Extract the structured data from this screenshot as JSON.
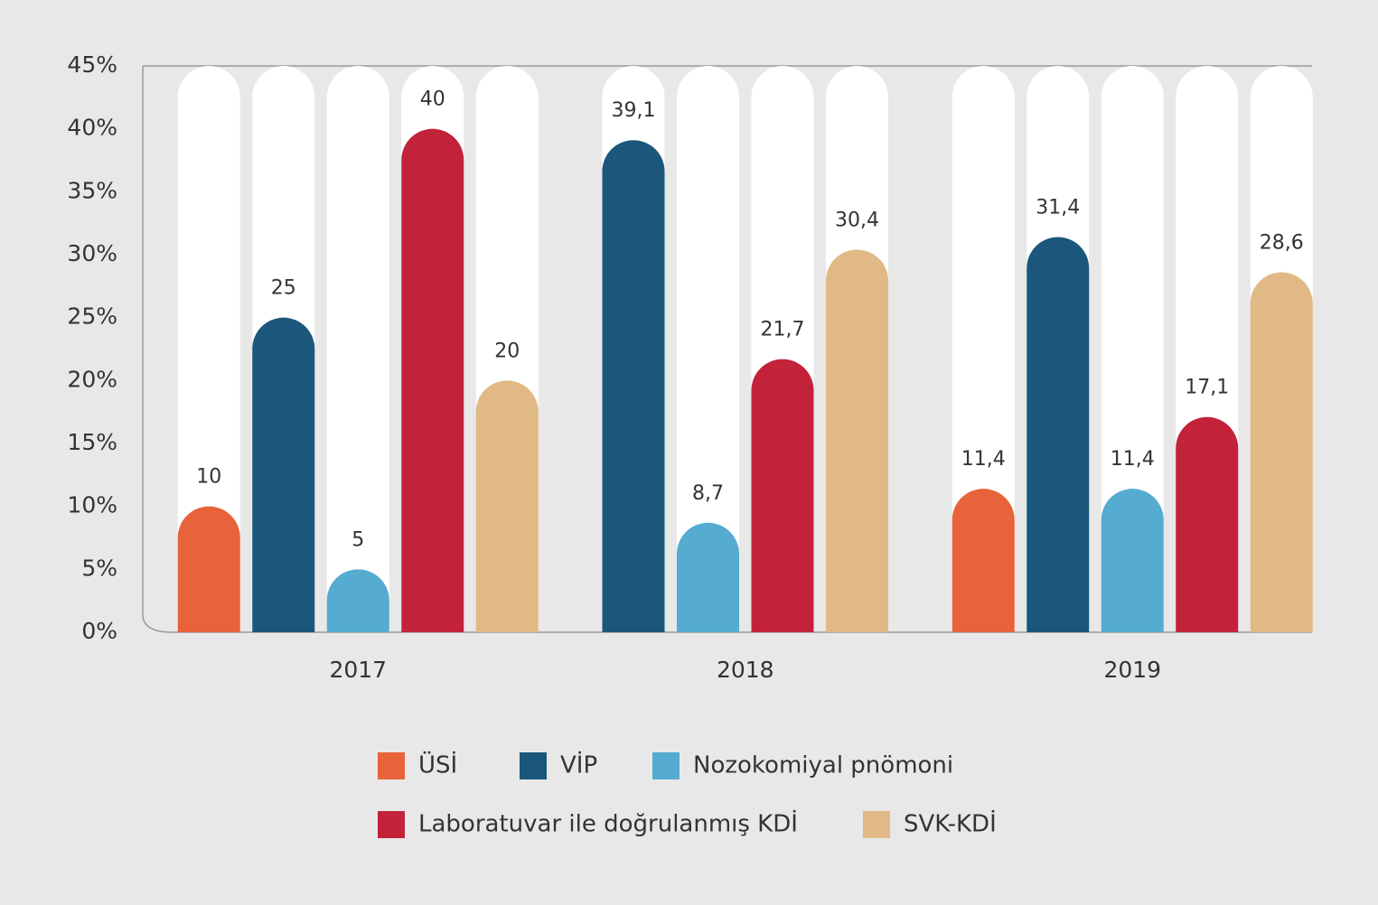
{
  "chart_data": {
    "type": "bar",
    "categories": [
      "2017",
      "2018",
      "2019"
    ],
    "series": [
      {
        "name": "ÜSİ",
        "color": "#e8633a",
        "values": [
          10,
          null,
          11.4
        ],
        "value_labels": [
          "10",
          null,
          "11,4"
        ]
      },
      {
        "name": "VİP",
        "color": "#1b577b",
        "values": [
          25,
          39.1,
          31.4
        ],
        "value_labels": [
          "25",
          "39,1",
          "31,4"
        ]
      },
      {
        "name": "Nozokomiyal pnömoni",
        "color": "#55abd0",
        "values": [
          5,
          8.7,
          11.4
        ],
        "value_labels": [
          "5",
          "8,7",
          "11,4"
        ]
      },
      {
        "name": "Laboratuvar ile doğrulanmış KDİ",
        "color": "#c2233a",
        "values": [
          40,
          21.7,
          17.1
        ],
        "value_labels": [
          "40",
          "21,7",
          "17,1"
        ]
      },
      {
        "name": "SVK-KDİ",
        "color": "#e0b986",
        "values": [
          20,
          30.4,
          28.6
        ],
        "value_labels": [
          "20",
          "30,4",
          "28,6"
        ]
      }
    ],
    "ylim": [
      0,
      45
    ],
    "yticks": [
      {
        "value": 0,
        "label": "0%"
      },
      {
        "value": 5,
        "label": "5%"
      },
      {
        "value": 10,
        "label": "10%"
      },
      {
        "value": 15,
        "label": "15%"
      },
      {
        "value": 20,
        "label": "20%"
      },
      {
        "value": 25,
        "label": "25%"
      },
      {
        "value": 30,
        "label": "30%"
      },
      {
        "value": 35,
        "label": "35%"
      },
      {
        "value": 40,
        "label": "40%"
      },
      {
        "value": 45,
        "label": "45%"
      }
    ],
    "legend": "bottom"
  }
}
